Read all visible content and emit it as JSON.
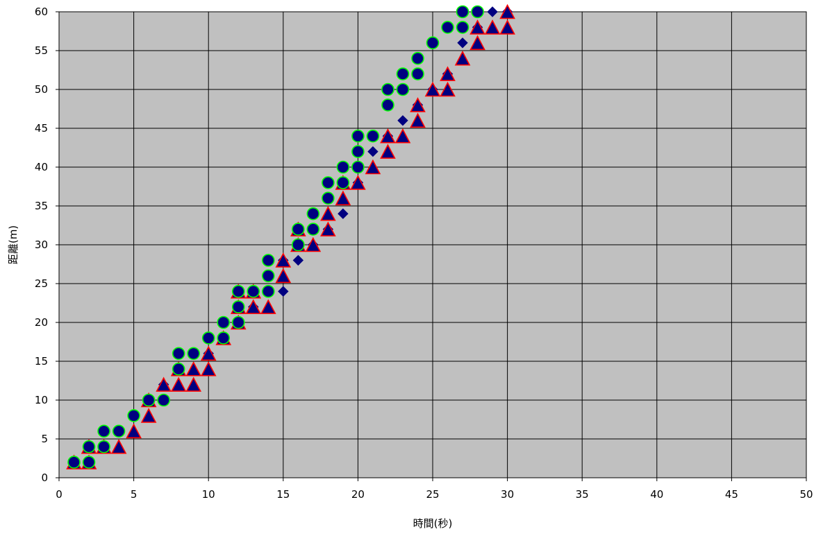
{
  "chart_data": {
    "type": "scatter",
    "title": "",
    "xlabel": "時間(秒)",
    "ylabel": "距離(m)",
    "xlim": [
      0,
      50
    ],
    "ylim": [
      0,
      60
    ],
    "x_ticks": [
      "0",
      "5",
      "10",
      "15",
      "20",
      "25",
      "30",
      "35",
      "40",
      "45",
      "50"
    ],
    "y_ticks": [
      "0",
      "5",
      "10",
      "15",
      "20",
      "25",
      "30",
      "35",
      "40",
      "45",
      "50",
      "55",
      "60"
    ],
    "grid": true,
    "legend": "none",
    "plot_background": "#c0c0c0",
    "series": [
      {
        "marker": "diamond",
        "color": "#000080",
        "edge_color": "#000080",
        "points": [
          [
            1,
            2
          ],
          [
            2,
            4
          ],
          [
            3,
            6
          ],
          [
            4,
            6
          ],
          [
            5,
            8
          ],
          [
            6,
            10
          ],
          [
            7,
            12
          ],
          [
            8,
            14
          ],
          [
            9,
            16
          ],
          [
            10,
            16
          ],
          [
            11,
            18
          ],
          [
            12,
            20
          ],
          [
            13,
            22
          ],
          [
            14,
            24
          ],
          [
            15,
            24
          ],
          [
            15,
            28
          ],
          [
            16,
            28
          ],
          [
            17,
            30
          ],
          [
            18,
            32
          ],
          [
            19,
            34
          ],
          [
            20,
            38
          ],
          [
            21,
            42
          ],
          [
            22,
            44
          ],
          [
            23,
            46
          ],
          [
            24,
            48
          ],
          [
            25,
            50
          ],
          [
            26,
            52
          ],
          [
            27,
            56
          ],
          [
            28,
            58
          ],
          [
            29,
            60
          ],
          [
            30,
            60
          ]
        ]
      },
      {
        "marker": "triangle",
        "color": "#000080",
        "edge_color": "#ff0000",
        "points": [
          [
            1,
            2
          ],
          [
            2,
            2
          ],
          [
            2,
            4
          ],
          [
            3,
            4
          ],
          [
            4,
            4
          ],
          [
            5,
            6
          ],
          [
            6,
            8
          ],
          [
            6,
            10
          ],
          [
            7,
            12
          ],
          [
            8,
            12
          ],
          [
            8,
            14
          ],
          [
            9,
            12
          ],
          [
            9,
            14
          ],
          [
            10,
            14
          ],
          [
            10,
            16
          ],
          [
            11,
            18
          ],
          [
            12,
            20
          ],
          [
            12,
            22
          ],
          [
            12,
            24
          ],
          [
            13,
            22
          ],
          [
            13,
            24
          ],
          [
            14,
            22
          ],
          [
            15,
            26
          ],
          [
            15,
            28
          ],
          [
            16,
            30
          ],
          [
            16,
            32
          ],
          [
            17,
            30
          ],
          [
            18,
            32
          ],
          [
            18,
            34
          ],
          [
            19,
            36
          ],
          [
            19,
            38
          ],
          [
            20,
            38
          ],
          [
            21,
            40
          ],
          [
            22,
            42
          ],
          [
            22,
            44
          ],
          [
            23,
            44
          ],
          [
            24,
            46
          ],
          [
            24,
            48
          ],
          [
            25,
            50
          ],
          [
            26,
            50
          ],
          [
            26,
            52
          ],
          [
            27,
            54
          ],
          [
            28,
            56
          ],
          [
            28,
            58
          ],
          [
            29,
            58
          ],
          [
            30,
            58
          ],
          [
            30,
            60
          ]
        ]
      },
      {
        "marker": "circle",
        "color": "#000080",
        "edge_color": "#00ff00",
        "points": [
          [
            1,
            2
          ],
          [
            2,
            2
          ],
          [
            2,
            4
          ],
          [
            3,
            4
          ],
          [
            3,
            6
          ],
          [
            4,
            6
          ],
          [
            5,
            8
          ],
          [
            6,
            10
          ],
          [
            7,
            10
          ],
          [
            8,
            14
          ],
          [
            8,
            16
          ],
          [
            9,
            16
          ],
          [
            10,
            18
          ],
          [
            11,
            18
          ],
          [
            11,
            20
          ],
          [
            12,
            20
          ],
          [
            12,
            22
          ],
          [
            12,
            24
          ],
          [
            13,
            24
          ],
          [
            14,
            24
          ],
          [
            14,
            26
          ],
          [
            14,
            28
          ],
          [
            16,
            30
          ],
          [
            16,
            32
          ],
          [
            17,
            32
          ],
          [
            17,
            34
          ],
          [
            18,
            36
          ],
          [
            18,
            38
          ],
          [
            19,
            38
          ],
          [
            19,
            40
          ],
          [
            20,
            40
          ],
          [
            20,
            42
          ],
          [
            20,
            44
          ],
          [
            21,
            44
          ],
          [
            22,
            48
          ],
          [
            22,
            50
          ],
          [
            23,
            50
          ],
          [
            23,
            52
          ],
          [
            24,
            52
          ],
          [
            24,
            54
          ],
          [
            25,
            56
          ],
          [
            26,
            58
          ],
          [
            27,
            58
          ],
          [
            27,
            60
          ],
          [
            28,
            60
          ]
        ]
      }
    ]
  }
}
